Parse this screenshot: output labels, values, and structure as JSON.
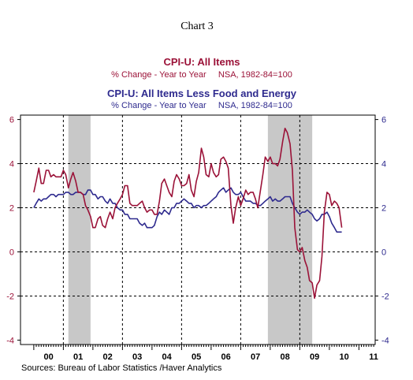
{
  "chart_data": {
    "type": "line",
    "title": "Chart 3",
    "series": [
      {
        "name": "CPI-U: All Items",
        "subtitle": "% Change - Year to Year     NSA, 1982-84=100",
        "color": "#9b1238",
        "x": [
          2000.0,
          2000.08,
          2000.17,
          2000.25,
          2000.33,
          2000.42,
          2000.5,
          2000.58,
          2000.67,
          2000.75,
          2000.83,
          2000.92,
          2001.0,
          2001.08,
          2001.17,
          2001.25,
          2001.33,
          2001.42,
          2001.5,
          2001.58,
          2001.67,
          2001.75,
          2001.83,
          2001.92,
          2002.0,
          2002.08,
          2002.17,
          2002.25,
          2002.33,
          2002.42,
          2002.5,
          2002.58,
          2002.67,
          2002.75,
          2002.83,
          2002.92,
          2003.0,
          2003.08,
          2003.17,
          2003.25,
          2003.33,
          2003.42,
          2003.5,
          2003.58,
          2003.67,
          2003.75,
          2003.83,
          2003.92,
          2004.0,
          2004.08,
          2004.17,
          2004.25,
          2004.33,
          2004.42,
          2004.5,
          2004.58,
          2004.67,
          2004.75,
          2004.83,
          2004.92,
          2005.0,
          2005.08,
          2005.17,
          2005.25,
          2005.33,
          2005.42,
          2005.5,
          2005.58,
          2005.67,
          2005.75,
          2005.83,
          2005.92,
          2006.0,
          2006.08,
          2006.17,
          2006.25,
          2006.33,
          2006.42,
          2006.5,
          2006.58,
          2006.67,
          2006.75,
          2006.83,
          2006.92,
          2007.0,
          2007.08,
          2007.17,
          2007.25,
          2007.33,
          2007.42,
          2007.5,
          2007.58,
          2007.67,
          2007.75,
          2007.83,
          2007.92,
          2008.0,
          2008.08,
          2008.17,
          2008.25,
          2008.33,
          2008.42,
          2008.5,
          2008.58,
          2008.67,
          2008.75,
          2008.83,
          2008.92,
          2009.0,
          2009.08,
          2009.17,
          2009.25,
          2009.33,
          2009.42,
          2009.5,
          2009.58,
          2009.67,
          2009.75,
          2009.83,
          2009.92,
          2010.0,
          2010.08,
          2010.17,
          2010.25,
          2010.33,
          2010.42
        ],
        "values": [
          2.7,
          3.2,
          3.8,
          3.1,
          3.1,
          3.7,
          3.7,
          3.4,
          3.5,
          3.4,
          3.4,
          3.4,
          3.7,
          3.5,
          2.9,
          3.3,
          3.6,
          3.2,
          2.7,
          2.7,
          2.6,
          2.1,
          1.9,
          1.6,
          1.1,
          1.1,
          1.5,
          1.6,
          1.2,
          1.1,
          1.5,
          1.8,
          1.5,
          2.0,
          2.2,
          2.4,
          2.6,
          3.0,
          3.0,
          2.2,
          2.1,
          2.1,
          2.1,
          2.2,
          2.3,
          2.0,
          1.8,
          1.9,
          1.9,
          1.7,
          1.7,
          2.3,
          3.1,
          3.3,
          3.0,
          2.7,
          2.5,
          3.2,
          3.5,
          3.3,
          3.0,
          3.0,
          3.1,
          3.5,
          2.8,
          2.5,
          3.2,
          3.6,
          4.7,
          4.3,
          3.5,
          3.4,
          4.0,
          3.6,
          3.4,
          3.5,
          4.2,
          4.3,
          4.1,
          3.8,
          2.1,
          1.3,
          2.0,
          2.5,
          2.1,
          2.4,
          2.8,
          2.6,
          2.7,
          2.7,
          2.4,
          2.0,
          2.8,
          3.5,
          4.3,
          4.1,
          4.3,
          4.0,
          4.0,
          3.9,
          4.2,
          5.0,
          5.6,
          5.4,
          4.9,
          3.7,
          1.1,
          0.1,
          0.0,
          0.2,
          -0.4,
          -0.7,
          -1.3,
          -1.4,
          -2.1,
          -1.5,
          -1.3,
          -0.2,
          1.8,
          2.7,
          2.6,
          2.1,
          2.3,
          2.2,
          2.0,
          1.1
        ],
        "label_ylim": [
          -4,
          6
        ]
      },
      {
        "name": "CPI-U: All Items Less Food and Energy",
        "subtitle": "% Change - Year to Year     NSA, 1982-84=100",
        "color": "#2e2a8e",
        "x": [
          2000.0,
          2000.08,
          2000.17,
          2000.25,
          2000.33,
          2000.42,
          2000.5,
          2000.58,
          2000.67,
          2000.75,
          2000.83,
          2000.92,
          2001.0,
          2001.08,
          2001.17,
          2001.25,
          2001.33,
          2001.42,
          2001.5,
          2001.58,
          2001.67,
          2001.75,
          2001.83,
          2001.92,
          2002.0,
          2002.08,
          2002.17,
          2002.25,
          2002.33,
          2002.42,
          2002.5,
          2002.58,
          2002.67,
          2002.75,
          2002.83,
          2002.92,
          2003.0,
          2003.08,
          2003.17,
          2003.25,
          2003.33,
          2003.42,
          2003.5,
          2003.58,
          2003.67,
          2003.75,
          2003.83,
          2003.92,
          2004.0,
          2004.08,
          2004.17,
          2004.25,
          2004.33,
          2004.42,
          2004.5,
          2004.58,
          2004.67,
          2004.75,
          2004.83,
          2004.92,
          2005.0,
          2005.08,
          2005.17,
          2005.25,
          2005.33,
          2005.42,
          2005.5,
          2005.58,
          2005.67,
          2005.75,
          2005.83,
          2005.92,
          2006.0,
          2006.08,
          2006.17,
          2006.25,
          2006.33,
          2006.42,
          2006.5,
          2006.58,
          2006.67,
          2006.75,
          2006.83,
          2006.92,
          2007.0,
          2007.08,
          2007.17,
          2007.25,
          2007.33,
          2007.42,
          2007.5,
          2007.58,
          2007.67,
          2007.75,
          2007.83,
          2007.92,
          2008.0,
          2008.08,
          2008.17,
          2008.25,
          2008.33,
          2008.42,
          2008.5,
          2008.58,
          2008.67,
          2008.75,
          2008.83,
          2008.92,
          2009.0,
          2009.08,
          2009.17,
          2009.25,
          2009.33,
          2009.42,
          2009.5,
          2009.58,
          2009.67,
          2009.75,
          2009.83,
          2009.92,
          2010.0,
          2010.08,
          2010.17,
          2010.25,
          2010.33,
          2010.42
        ],
        "values": [
          2.0,
          2.2,
          2.4,
          2.3,
          2.4,
          2.4,
          2.5,
          2.6,
          2.6,
          2.5,
          2.6,
          2.6,
          2.6,
          2.7,
          2.7,
          2.6,
          2.6,
          2.7,
          2.7,
          2.7,
          2.6,
          2.6,
          2.8,
          2.8,
          2.6,
          2.6,
          2.4,
          2.5,
          2.5,
          2.3,
          2.2,
          2.4,
          2.2,
          2.2,
          2.0,
          1.9,
          1.9,
          1.7,
          1.7,
          1.5,
          1.5,
          1.5,
          1.5,
          1.3,
          1.2,
          1.3,
          1.1,
          1.1,
          1.1,
          1.2,
          1.6,
          1.8,
          1.7,
          1.9,
          1.8,
          1.7,
          2.0,
          2.0,
          2.2,
          2.2,
          2.3,
          2.4,
          2.3,
          2.2,
          2.2,
          2.0,
          2.1,
          2.1,
          2.0,
          2.1,
          2.1,
          2.2,
          2.3,
          2.4,
          2.5,
          2.7,
          2.8,
          2.9,
          2.7,
          2.8,
          2.9,
          2.7,
          2.6,
          2.6,
          2.7,
          2.5,
          2.3,
          2.3,
          2.3,
          2.2,
          2.2,
          2.1,
          2.1,
          2.2,
          2.3,
          2.4,
          2.5,
          2.3,
          2.4,
          2.3,
          2.3,
          2.4,
          2.5,
          2.5,
          2.5,
          2.2,
          2.0,
          1.8,
          1.7,
          1.8,
          1.8,
          1.9,
          1.8,
          1.7,
          1.5,
          1.4,
          1.5,
          1.7,
          1.7,
          1.8,
          1.6,
          1.3,
          1.1,
          0.9,
          0.9,
          0.9
        ],
        "label_ylim": [
          -4,
          6
        ]
      }
    ],
    "xlim": [
      1999.55,
      2011.55
    ],
    "ylim": [
      -4.2,
      6.2
    ],
    "left_axis_ticks": [
      "6",
      "4",
      "2",
      "0",
      "-2",
      "-4"
    ],
    "left_axis_values": [
      6,
      4,
      2,
      0,
      -2,
      -4
    ],
    "right_axis_ticks": [
      "6",
      "4",
      "2",
      "0",
      "-2",
      "-4"
    ],
    "year_labels": [
      "00",
      "01",
      "02",
      "03",
      "04",
      "05",
      "06",
      "07",
      "08",
      "09",
      "10",
      "11"
    ],
    "year_positions": [
      2000.5,
      2001.5,
      2002.5,
      2003.5,
      2004.5,
      2005.5,
      2006.5,
      2007.5,
      2008.5,
      2009.5,
      2010.5,
      2011.5
    ],
    "recessions": [
      [
        2001.17,
        2001.92
      ],
      [
        2007.92,
        2009.42
      ]
    ],
    "vertical_gridlines": [
      2001.0,
      2003.0,
      2005.0,
      2007.0,
      2009.0
    ],
    "grid": true,
    "source": "Sources:  Bureau of Labor Statistics /Haver Analytics"
  }
}
